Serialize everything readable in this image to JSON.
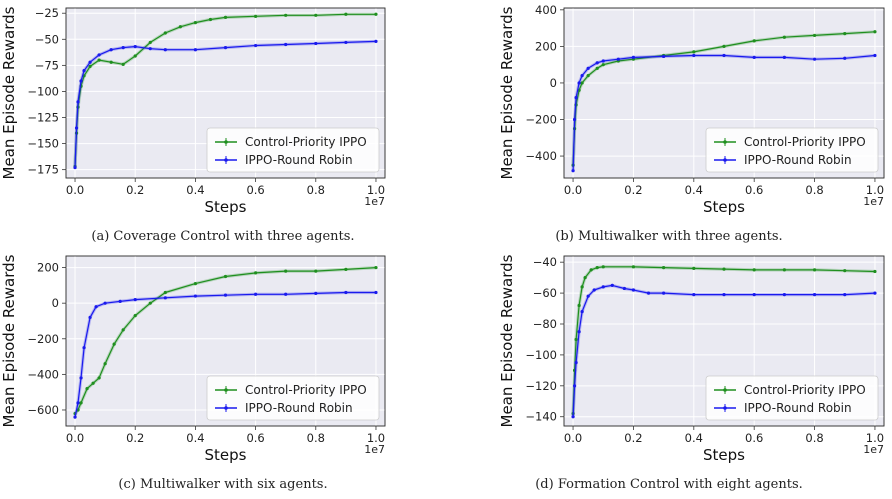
{
  "figure": {
    "captions": [
      "(a) Coverage Control with three agents.",
      "(b) Multiwalker with three agents.",
      "(c) Multiwalker with six agents.",
      "(d) Formation Control with eight agents."
    ]
  },
  "colors": {
    "green": "#1f8f1f",
    "blue": "#1a1aee",
    "plot_bg": "#eaeaf2",
    "grid": "#ffffff"
  },
  "chart_data": [
    {
      "type": "line",
      "xlabel": "Steps",
      "ylabel": "Mean Episode Rewards",
      "x_exponent": "1e7",
      "xlim": [
        -0.03,
        1.03
      ],
      "ylim": [
        -183,
        -20
      ],
      "xticks": [
        0.0,
        0.2,
        0.4,
        0.6,
        0.8,
        1.0
      ],
      "xtick_labels": [
        "0.0",
        "0.2",
        "0.4",
        "0.6",
        "0.8",
        "1.0"
      ],
      "yticks": [
        -175,
        -150,
        -125,
        -100,
        -75,
        -50,
        -25
      ],
      "ytick_labels": [
        "−175",
        "−150",
        "−125",
        "−100",
        "−75",
        "−50",
        "−25"
      ],
      "grid": true,
      "legend_position": "bottom-right",
      "series": [
        {
          "name": "Control-Priority IPPO",
          "color": "green",
          "x": [
            0,
            0.005,
            0.01,
            0.02,
            0.03,
            0.05,
            0.08,
            0.12,
            0.16,
            0.2,
            0.25,
            0.3,
            0.35,
            0.4,
            0.45,
            0.5,
            0.6,
            0.7,
            0.8,
            0.9,
            1.0
          ],
          "y": [
            -172,
            -140,
            -115,
            -95,
            -85,
            -76,
            -70,
            -72,
            -74,
            -66,
            -53,
            -44,
            -38,
            -34,
            -31,
            -29,
            -28,
            -27,
            -27,
            -26,
            -26
          ]
        },
        {
          "name": "IPPO-Round Robin",
          "color": "blue",
          "x": [
            0,
            0.005,
            0.01,
            0.02,
            0.03,
            0.05,
            0.08,
            0.12,
            0.16,
            0.2,
            0.25,
            0.3,
            0.4,
            0.5,
            0.6,
            0.7,
            0.8,
            0.9,
            1.0
          ],
          "y": [
            -173,
            -135,
            -110,
            -90,
            -80,
            -72,
            -65,
            -60,
            -58,
            -57,
            -59,
            -60,
            -60,
            -58,
            -56,
            -55,
            -54,
            -53,
            -52
          ]
        }
      ]
    },
    {
      "type": "line",
      "xlabel": "Steps",
      "ylabel": "Mean Episode Rewards",
      "x_exponent": "1e7",
      "xlim": [
        -0.03,
        1.03
      ],
      "ylim": [
        -520,
        410
      ],
      "xticks": [
        0.0,
        0.2,
        0.4,
        0.6,
        0.8,
        1.0
      ],
      "xtick_labels": [
        "0.0",
        "0.2",
        "0.4",
        "0.6",
        "0.8",
        "1.0"
      ],
      "yticks": [
        -400,
        -200,
        0,
        200,
        400
      ],
      "ytick_labels": [
        "−400",
        "−200",
        "0",
        "200",
        "400"
      ],
      "grid": true,
      "legend_position": "bottom-right",
      "series": [
        {
          "name": "Control-Priority IPPO",
          "color": "green",
          "x": [
            0,
            0.005,
            0.01,
            0.02,
            0.03,
            0.05,
            0.08,
            0.1,
            0.15,
            0.2,
            0.3,
            0.4,
            0.5,
            0.6,
            0.7,
            0.8,
            0.9,
            1.0
          ],
          "y": [
            -450,
            -250,
            -120,
            -40,
            0,
            40,
            80,
            100,
            120,
            130,
            150,
            170,
            200,
            230,
            250,
            260,
            270,
            280
          ]
        },
        {
          "name": "IPPO-Round Robin",
          "color": "blue",
          "x": [
            0,
            0.005,
            0.01,
            0.02,
            0.03,
            0.05,
            0.08,
            0.1,
            0.15,
            0.2,
            0.3,
            0.4,
            0.5,
            0.6,
            0.7,
            0.8,
            0.9,
            1.0
          ],
          "y": [
            -480,
            -200,
            -80,
            0,
            40,
            80,
            110,
            120,
            130,
            140,
            145,
            150,
            150,
            140,
            140,
            130,
            135,
            150
          ]
        }
      ]
    },
    {
      "type": "line",
      "xlabel": "Steps",
      "ylabel": "Mean Episode Rewards",
      "x_exponent": "1e7",
      "xlim": [
        -0.03,
        1.03
      ],
      "ylim": [
        -690,
        265
      ],
      "xticks": [
        0.0,
        0.2,
        0.4,
        0.6,
        0.8,
        1.0
      ],
      "xtick_labels": [
        "0.0",
        "0.2",
        "0.4",
        "0.6",
        "0.8",
        "1.0"
      ],
      "yticks": [
        -600,
        -400,
        -200,
        0,
        200
      ],
      "ytick_labels": [
        "−600",
        "−400",
        "−200",
        "0",
        "200"
      ],
      "grid": true,
      "legend_position": "bottom-right",
      "series": [
        {
          "name": "Control-Priority IPPO",
          "color": "green",
          "x": [
            0,
            0.01,
            0.02,
            0.04,
            0.06,
            0.08,
            0.1,
            0.13,
            0.16,
            0.2,
            0.25,
            0.3,
            0.4,
            0.5,
            0.6,
            0.7,
            0.8,
            0.9,
            1.0
          ],
          "y": [
            -620,
            -600,
            -560,
            -480,
            -450,
            -420,
            -340,
            -230,
            -150,
            -70,
            0,
            60,
            110,
            150,
            170,
            180,
            180,
            190,
            200
          ]
        },
        {
          "name": "IPPO-Round Robin",
          "color": "blue",
          "x": [
            0,
            0.01,
            0.02,
            0.03,
            0.05,
            0.07,
            0.1,
            0.15,
            0.2,
            0.3,
            0.4,
            0.5,
            0.6,
            0.7,
            0.8,
            0.9,
            1.0
          ],
          "y": [
            -640,
            -560,
            -420,
            -250,
            -80,
            -20,
            0,
            10,
            20,
            30,
            40,
            45,
            50,
            50,
            55,
            60,
            60
          ]
        }
      ]
    },
    {
      "type": "line",
      "xlabel": "Steps",
      "ylabel": "Mean Episode Rewards",
      "x_exponent": "1e7",
      "xlim": [
        -0.03,
        1.03
      ],
      "ylim": [
        -146,
        -36
      ],
      "xticks": [
        0.0,
        0.2,
        0.4,
        0.6,
        0.8,
        1.0
      ],
      "xtick_labels": [
        "0.0",
        "0.2",
        "0.4",
        "0.6",
        "0.8",
        "1.0"
      ],
      "yticks": [
        -140,
        -120,
        -100,
        -80,
        -60,
        -40
      ],
      "ytick_labels": [
        "−140",
        "−120",
        "−100",
        "−80",
        "−60",
        "−40"
      ],
      "grid": true,
      "legend_position": "bottom-right",
      "series": [
        {
          "name": "Control-Priority IPPO",
          "color": "green",
          "x": [
            0,
            0.005,
            0.01,
            0.02,
            0.03,
            0.04,
            0.06,
            0.08,
            0.1,
            0.2,
            0.3,
            0.4,
            0.5,
            0.6,
            0.7,
            0.8,
            0.9,
            1.0
          ],
          "y": [
            -138,
            -110,
            -90,
            -68,
            -56,
            -50,
            -45,
            -43.5,
            -43,
            -43,
            -43.5,
            -44,
            -44.5,
            -45,
            -45,
            -45,
            -45.5,
            -46
          ]
        },
        {
          "name": "IPPO-Round Robin",
          "color": "blue",
          "x": [
            0,
            0.005,
            0.01,
            0.02,
            0.03,
            0.05,
            0.07,
            0.1,
            0.13,
            0.17,
            0.2,
            0.25,
            0.3,
            0.4,
            0.5,
            0.6,
            0.7,
            0.8,
            0.9,
            1.0
          ],
          "y": [
            -140,
            -120,
            -105,
            -85,
            -72,
            -62,
            -58,
            -56,
            -55,
            -57,
            -58,
            -60,
            -60,
            -61,
            -61,
            -61,
            -61,
            -61,
            -61,
            -60
          ]
        }
      ]
    }
  ]
}
